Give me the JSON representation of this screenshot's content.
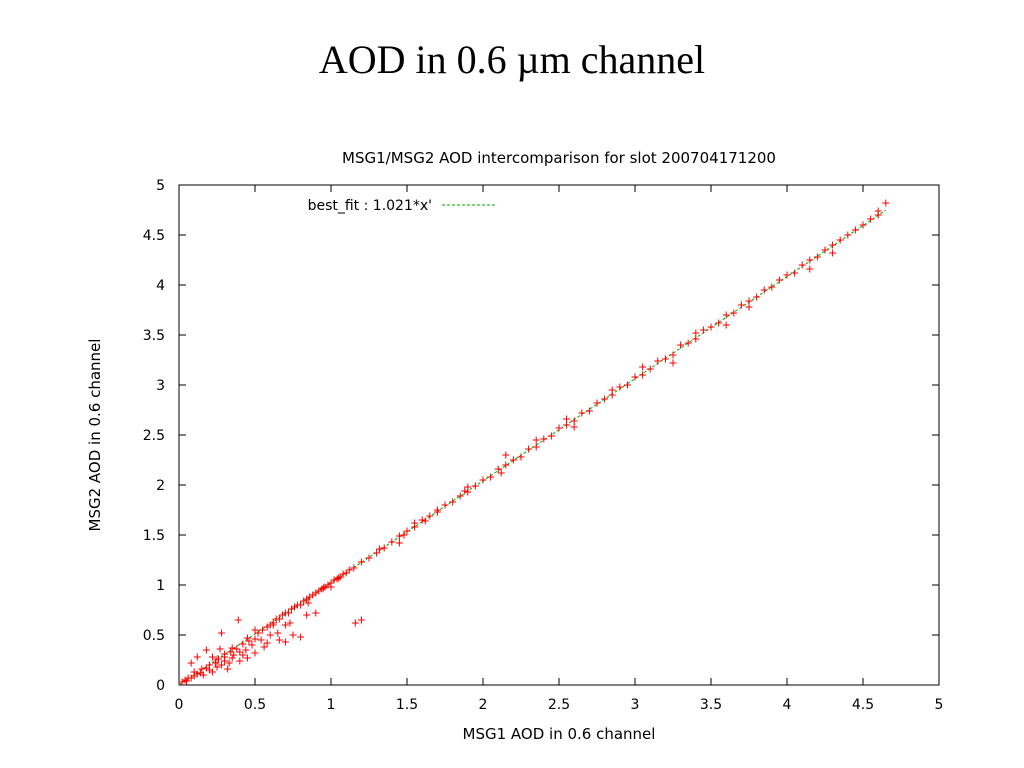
{
  "slide": {
    "title": "AOD in 0.6 µm channel"
  },
  "chart_data": {
    "type": "scatter",
    "title": "MSG1/MSG2 AOD intercomparison for slot 200704171200",
    "xlabel": "MSG1 AOD in 0.6 channel",
    "ylabel": "MSG2 AOD in 0.6 channel",
    "xlim": [
      0,
      5
    ],
    "ylim": [
      0,
      5
    ],
    "xticks": [
      "0",
      "0.5",
      "1",
      "1.5",
      "2",
      "2.5",
      "3",
      "3.5",
      "4",
      "4.5",
      "5"
    ],
    "yticks": [
      "0",
      "0.5",
      "1",
      "1.5",
      "2",
      "2.5",
      "3",
      "3.5",
      "4",
      "4.5",
      "5"
    ],
    "legend": {
      "label": "best_fit : 1.021*x'",
      "position": "top-left"
    },
    "grid": false,
    "colors": {
      "points": "#ff0000",
      "fit_line": "#00aa00"
    },
    "fit": {
      "slope": 1.021,
      "x_range": [
        0,
        4.65
      ]
    },
    "series": [
      {
        "marker": "plus",
        "points": [
          [
            0.02,
            0.03
          ],
          [
            0.04,
            0.05
          ],
          [
            0.05,
            0.04
          ],
          [
            0.06,
            0.07
          ],
          [
            0.08,
            0.07
          ],
          [
            0.1,
            0.09
          ],
          [
            0.1,
            0.13
          ],
          [
            0.12,
            0.11
          ],
          [
            0.14,
            0.12
          ],
          [
            0.15,
            0.16
          ],
          [
            0.16,
            0.1
          ],
          [
            0.18,
            0.17
          ],
          [
            0.2,
            0.15
          ],
          [
            0.2,
            0.2
          ],
          [
            0.22,
            0.13
          ],
          [
            0.24,
            0.22
          ],
          [
            0.25,
            0.18
          ],
          [
            0.26,
            0.26
          ],
          [
            0.28,
            0.2
          ],
          [
            0.3,
            0.28
          ],
          [
            0.3,
            0.24
          ],
          [
            0.32,
            0.16
          ],
          [
            0.34,
            0.33
          ],
          [
            0.35,
            0.27
          ],
          [
            0.36,
            0.3
          ],
          [
            0.38,
            0.36
          ],
          [
            0.4,
            0.33
          ],
          [
            0.4,
            0.24
          ],
          [
            0.42,
            0.41
          ],
          [
            0.44,
            0.35
          ],
          [
            0.45,
            0.27
          ],
          [
            0.46,
            0.44
          ],
          [
            0.48,
            0.4
          ],
          [
            0.5,
            0.46
          ],
          [
            0.5,
            0.32
          ],
          [
            0.52,
            0.52
          ],
          [
            0.54,
            0.45
          ],
          [
            0.55,
            0.55
          ],
          [
            0.56,
            0.38
          ],
          [
            0.58,
            0.58
          ],
          [
            0.6,
            0.6
          ],
          [
            0.6,
            0.5
          ],
          [
            0.62,
            0.62
          ],
          [
            0.64,
            0.66
          ],
          [
            0.65,
            0.52
          ],
          [
            0.66,
            0.66
          ],
          [
            0.68,
            0.7
          ],
          [
            0.7,
            0.6
          ],
          [
            0.7,
            0.72
          ],
          [
            0.72,
            0.72
          ],
          [
            0.74,
            0.76
          ],
          [
            0.75,
            0.5
          ],
          [
            0.76,
            0.78
          ],
          [
            0.78,
            0.8
          ],
          [
            0.8,
            0.8
          ],
          [
            0.8,
            0.48
          ],
          [
            0.82,
            0.84
          ],
          [
            0.84,
            0.86
          ],
          [
            0.85,
            0.82
          ],
          [
            0.86,
            0.88
          ],
          [
            0.88,
            0.9
          ],
          [
            0.9,
            0.92
          ],
          [
            0.9,
            0.72
          ],
          [
            0.92,
            0.94
          ],
          [
            0.94,
            0.96
          ],
          [
            0.95,
            0.97
          ],
          [
            0.96,
            0.98
          ],
          [
            0.98,
            1.0
          ],
          [
            1.0,
            1.02
          ],
          [
            1.0,
            0.98
          ],
          [
            1.02,
            1.05
          ],
          [
            1.04,
            1.06
          ],
          [
            1.05,
            1.07
          ],
          [
            1.06,
            1.08
          ],
          [
            1.08,
            1.11
          ],
          [
            1.1,
            1.12
          ],
          [
            1.12,
            1.15
          ],
          [
            1.15,
            1.17
          ],
          [
            1.16,
            0.62
          ],
          [
            1.2,
            0.65
          ],
          [
            0.39,
            0.65
          ],
          [
            0.62,
            0.6
          ],
          [
            0.28,
            0.52
          ],
          [
            0.18,
            0.35
          ],
          [
            0.12,
            0.28
          ],
          [
            0.08,
            0.22
          ],
          [
            1.2,
            1.23
          ],
          [
            1.25,
            1.27
          ],
          [
            1.3,
            1.32
          ],
          [
            1.32,
            1.36
          ],
          [
            1.35,
            1.37
          ],
          [
            1.4,
            1.43
          ],
          [
            1.45,
            1.49
          ],
          [
            1.48,
            1.5
          ],
          [
            1.5,
            1.54
          ],
          [
            1.55,
            1.58
          ],
          [
            1.6,
            1.65
          ],
          [
            1.62,
            1.64
          ],
          [
            1.65,
            1.69
          ],
          [
            1.7,
            1.73
          ],
          [
            1.75,
            1.8
          ],
          [
            1.8,
            1.83
          ],
          [
            1.85,
            1.89
          ],
          [
            1.88,
            1.94
          ],
          [
            1.9,
            1.93
          ],
          [
            1.95,
            1.99
          ],
          [
            2.0,
            2.05
          ],
          [
            2.05,
            2.08
          ],
          [
            2.1,
            2.16
          ],
          [
            2.12,
            2.12
          ],
          [
            2.15,
            2.2
          ],
          [
            2.2,
            2.25
          ],
          [
            2.25,
            2.28
          ],
          [
            2.3,
            2.36
          ],
          [
            2.35,
            2.38
          ],
          [
            2.4,
            2.46
          ],
          [
            2.45,
            2.49
          ],
          [
            2.5,
            2.57
          ],
          [
            2.55,
            2.6
          ],
          [
            2.6,
            2.64
          ],
          [
            2.65,
            2.72
          ],
          [
            2.7,
            2.74
          ],
          [
            2.75,
            2.82
          ],
          [
            2.8,
            2.86
          ],
          [
            2.85,
            2.9
          ],
          [
            2.9,
            2.98
          ],
          [
            2.95,
            3.0
          ],
          [
            3.0,
            3.08
          ],
          [
            3.05,
            3.1
          ],
          [
            3.1,
            3.16
          ],
          [
            3.15,
            3.24
          ],
          [
            3.2,
            3.26
          ],
          [
            3.25,
            3.3
          ],
          [
            3.3,
            3.4
          ],
          [
            3.35,
            3.42
          ],
          [
            3.4,
            3.46
          ],
          [
            3.45,
            3.55
          ],
          [
            3.5,
            3.58
          ],
          [
            3.55,
            3.62
          ],
          [
            3.6,
            3.7
          ],
          [
            3.65,
            3.72
          ],
          [
            3.7,
            3.8
          ],
          [
            3.75,
            3.84
          ],
          [
            3.8,
            3.88
          ],
          [
            3.85,
            3.95
          ],
          [
            3.9,
            3.98
          ],
          [
            3.95,
            4.05
          ],
          [
            4.0,
            4.1
          ],
          [
            4.05,
            4.12
          ],
          [
            4.1,
            4.2
          ],
          [
            4.15,
            4.25
          ],
          [
            4.2,
            4.28
          ],
          [
            4.25,
            4.35
          ],
          [
            4.3,
            4.4
          ],
          [
            4.35,
            4.45
          ],
          [
            4.4,
            4.5
          ],
          [
            4.45,
            4.55
          ],
          [
            4.5,
            4.6
          ],
          [
            4.55,
            4.66
          ],
          [
            4.6,
            4.7
          ],
          [
            4.65,
            4.82
          ],
          [
            4.6,
            4.74
          ],
          [
            3.4,
            3.52
          ],
          [
            3.05,
            3.18
          ],
          [
            2.6,
            2.58
          ],
          [
            2.15,
            2.3
          ],
          [
            1.45,
            1.42
          ],
          [
            1.9,
            1.98
          ],
          [
            3.75,
            3.78
          ],
          [
            4.15,
            4.16
          ],
          [
            2.85,
            2.95
          ],
          [
            2.35,
            2.45
          ],
          [
            1.55,
            1.62
          ],
          [
            1.7,
            1.75
          ],
          [
            3.25,
            3.22
          ],
          [
            2.55,
            2.66
          ],
          [
            3.6,
            3.6
          ],
          [
            4.3,
            4.32
          ],
          [
            0.5,
            0.55
          ],
          [
            0.45,
            0.47
          ],
          [
            0.35,
            0.37
          ],
          [
            0.3,
            0.31
          ],
          [
            0.25,
            0.26
          ],
          [
            0.42,
            0.3
          ],
          [
            0.33,
            0.22
          ],
          [
            0.22,
            0.28
          ],
          [
            0.27,
            0.36
          ],
          [
            0.58,
            0.42
          ],
          [
            0.66,
            0.45
          ],
          [
            0.7,
            0.43
          ],
          [
            0.73,
            0.62
          ],
          [
            0.84,
            0.7
          ]
        ]
      }
    ]
  }
}
